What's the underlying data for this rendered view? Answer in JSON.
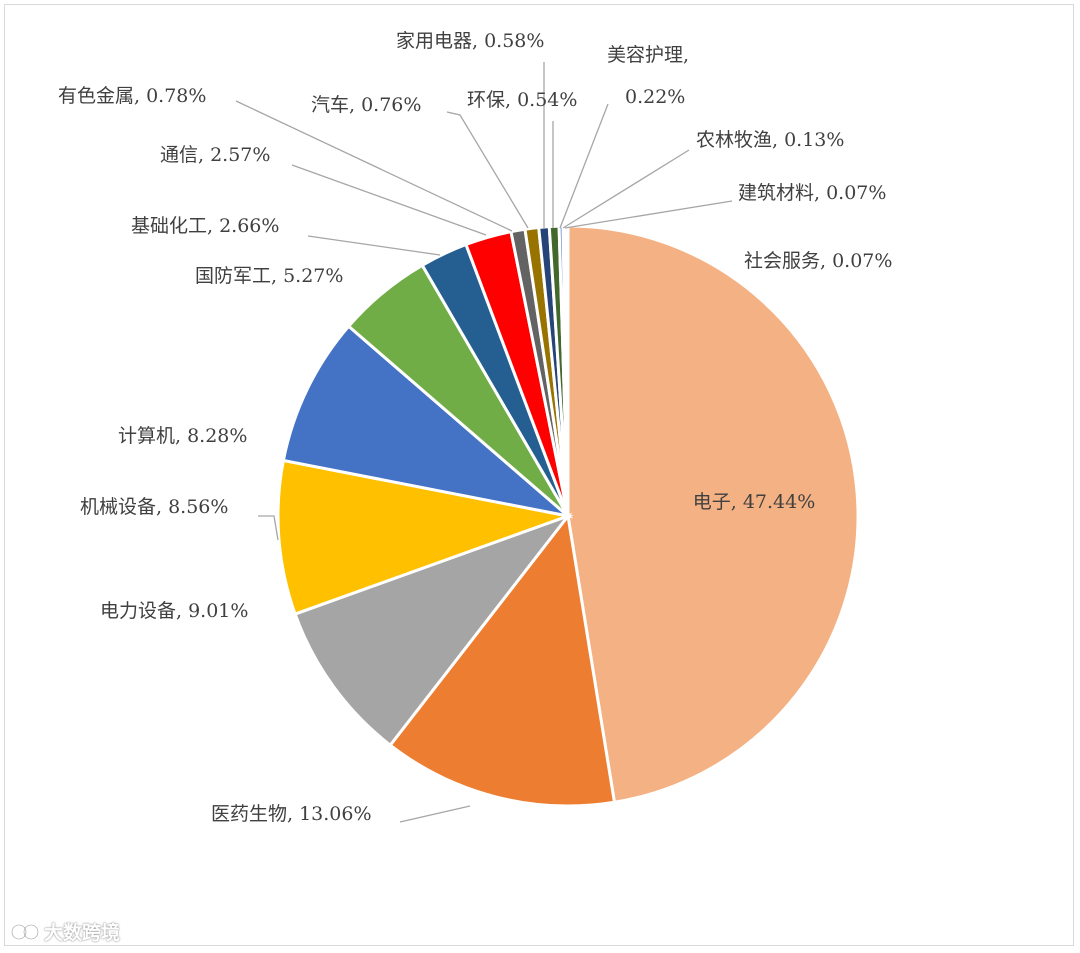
{
  "chart_data": {
    "type": "pie",
    "title": "",
    "series": [
      {
        "category": "电子",
        "value": 47.44,
        "label": "电子, 47.44%",
        "color": "#F4B183"
      },
      {
        "category": "医药生物",
        "value": 13.06,
        "label": "医药生物, 13.06%",
        "color": "#ED7D31"
      },
      {
        "category": "电力设备",
        "value": 9.01,
        "label": "电力设备, 9.01%",
        "color": "#A5A5A5"
      },
      {
        "category": "机械设备",
        "value": 8.56,
        "label": "机械设备, 8.56%",
        "color": "#FFC000"
      },
      {
        "category": "计算机",
        "value": 8.28,
        "label": "计算机, 8.28%",
        "color": "#4472C4"
      },
      {
        "category": "国防军工",
        "value": 5.27,
        "label": "国防军工, 5.27%",
        "color": "#70AD47"
      },
      {
        "category": "基础化工",
        "value": 2.66,
        "label": "基础化工, 2.66%",
        "color": "#255E91"
      },
      {
        "category": "通信",
        "value": 2.57,
        "label": "通信, 2.57%",
        "color": "#FF0000"
      },
      {
        "category": "有色金属",
        "value": 0.78,
        "label": "有色金属, 0.78%",
        "color": "#636363"
      },
      {
        "category": "汽车",
        "value": 0.76,
        "label": "汽车, 0.76%",
        "color": "#997300"
      },
      {
        "category": "家用电器",
        "value": 0.58,
        "label": "家用电器, 0.58%",
        "color": "#264478"
      },
      {
        "category": "环保",
        "value": 0.54,
        "label": "环保, 0.54%",
        "color": "#43682B"
      },
      {
        "category": "美容护理",
        "value": 0.22,
        "label": "美容护理, 0.22%",
        "color": "#698ED0"
      },
      {
        "category": "农林牧渔",
        "value": 0.13,
        "label": "农林牧渔, 0.13%",
        "color": "#F1975A"
      },
      {
        "category": "建筑材料",
        "value": 0.07,
        "label": "建筑材料, 0.07%",
        "color": "#B7B7B7"
      },
      {
        "category": "社会服务",
        "value": 0.07,
        "label": "社会服务, 0.07%",
        "color": "#FFCD33"
      }
    ]
  },
  "watermark": {
    "text": "大数跨境"
  }
}
